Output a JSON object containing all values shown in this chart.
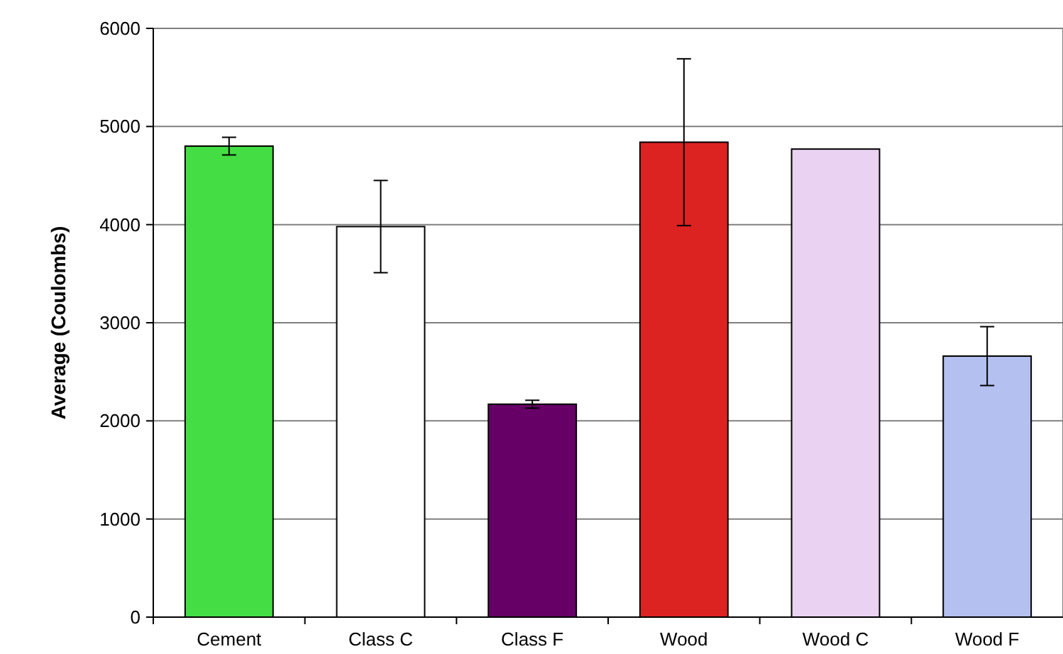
{
  "chart_data": {
    "type": "bar",
    "ylabel": "Average (Coulombs)",
    "categories": [
      "Cement",
      "Class C",
      "Class F",
      "Wood",
      "Wood C",
      "Wood F"
    ],
    "values": [
      4800,
      3980,
      2170,
      4840,
      4770,
      2660
    ],
    "errors": [
      90,
      470,
      40,
      850,
      null,
      300
    ],
    "colors": [
      "#44dd44",
      "#ffffff",
      "#660066",
      "#dd2222",
      "#ead2f2",
      "#b4c0f0"
    ],
    "ylim": [
      0,
      6000
    ],
    "yticks": [
      0,
      1000,
      2000,
      3000,
      4000,
      5000,
      6000
    ],
    "grid": "y"
  }
}
